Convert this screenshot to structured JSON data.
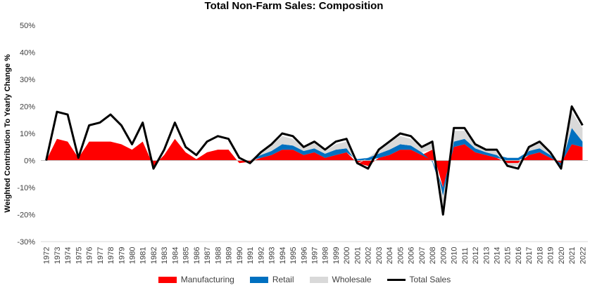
{
  "chart_data": {
    "type": "area",
    "title": "Total Non-Farm Sales: Composition",
    "ylabel": "Weighted Contribution To Yearly Change %",
    "xlabel": "",
    "ylim": [
      -30,
      50
    ],
    "yticks": [
      "50%",
      "40%",
      "30%",
      "20%",
      "10%",
      "0%",
      "-10%",
      "-20%",
      "-30%"
    ],
    "x": [
      "1972",
      "1973",
      "1974",
      "1975",
      "1976",
      "1977",
      "1978",
      "1979",
      "1980",
      "1981",
      "1982",
      "1983",
      "1984",
      "1985",
      "1986",
      "1987",
      "1988",
      "1989",
      "1990",
      "1991",
      "1992",
      "1993",
      "1994",
      "1995",
      "1996",
      "1997",
      "1998",
      "1999",
      "2000",
      "2001",
      "2002",
      "2003",
      "2004",
      "2005",
      "2006",
      "2007",
      "2008",
      "2009",
      "2010",
      "2011",
      "2012",
      "2013",
      "2014",
      "2015",
      "2016",
      "2017",
      "2018",
      "2019",
      "2020",
      "2021",
      "2022"
    ],
    "series": [
      {
        "name": "Manufacturing",
        "color": "#ff0000",
        "values": [
          0,
          8,
          7,
          1,
          7,
          7,
          7,
          6,
          4,
          7,
          -2,
          2,
          8,
          3,
          0.5,
          3,
          4,
          4,
          -1,
          -0.5,
          1,
          2,
          4,
          4,
          2,
          3,
          1,
          2,
          3,
          -1,
          -2,
          1,
          2,
          4,
          4,
          2,
          4,
          -10,
          5,
          6,
          3,
          2,
          1,
          -1,
          -1,
          2,
          3,
          1,
          -1,
          6,
          5
        ]
      },
      {
        "name": "Retail",
        "color": "#0070c0",
        "values": [
          0,
          0,
          0,
          0,
          0,
          0,
          0,
          0,
          0,
          0,
          0,
          0,
          0,
          0,
          0,
          0,
          0,
          0,
          0,
          0,
          1,
          1.5,
          2,
          1.5,
          1.5,
          1.5,
          1.5,
          2,
          1.5,
          0.5,
          1,
          1.5,
          2,
          2,
          1.5,
          1,
          -0.5,
          -3,
          2,
          2,
          1.5,
          1,
          1,
          1,
          1,
          1.5,
          1.5,
          1,
          -1,
          6,
          2
        ]
      },
      {
        "name": "Wholesale",
        "color": "#d9d9d9",
        "values": [
          0,
          0,
          0,
          0,
          0,
          0,
          0,
          0,
          0,
          0,
          0,
          0,
          0,
          0,
          0,
          0,
          0,
          0,
          0,
          0,
          1,
          2,
          3,
          2.5,
          1.5,
          2,
          1,
          2,
          2.5,
          -0.5,
          0,
          1.5,
          3,
          3,
          2.5,
          2,
          3,
          -7,
          4,
          3,
          1.5,
          1,
          1.5,
          -1,
          -1,
          2,
          2,
          0.5,
          -1,
          6,
          5
        ]
      },
      {
        "name": "Total Sales",
        "color": "#000000",
        "values": [
          0,
          18,
          17,
          1,
          13,
          14,
          17,
          13,
          6,
          14,
          -3,
          4,
          14,
          5,
          2,
          7,
          9,
          8,
          1,
          -1,
          3,
          6,
          10,
          9,
          5,
          7,
          4,
          7,
          8,
          -1,
          -3,
          4,
          7,
          10,
          9,
          5,
          7,
          -20,
          12,
          12,
          6,
          4,
          4,
          -2,
          -3,
          5,
          7,
          3,
          -3,
          20,
          13
        ]
      }
    ],
    "legend_position": "bottom",
    "grid": false
  }
}
